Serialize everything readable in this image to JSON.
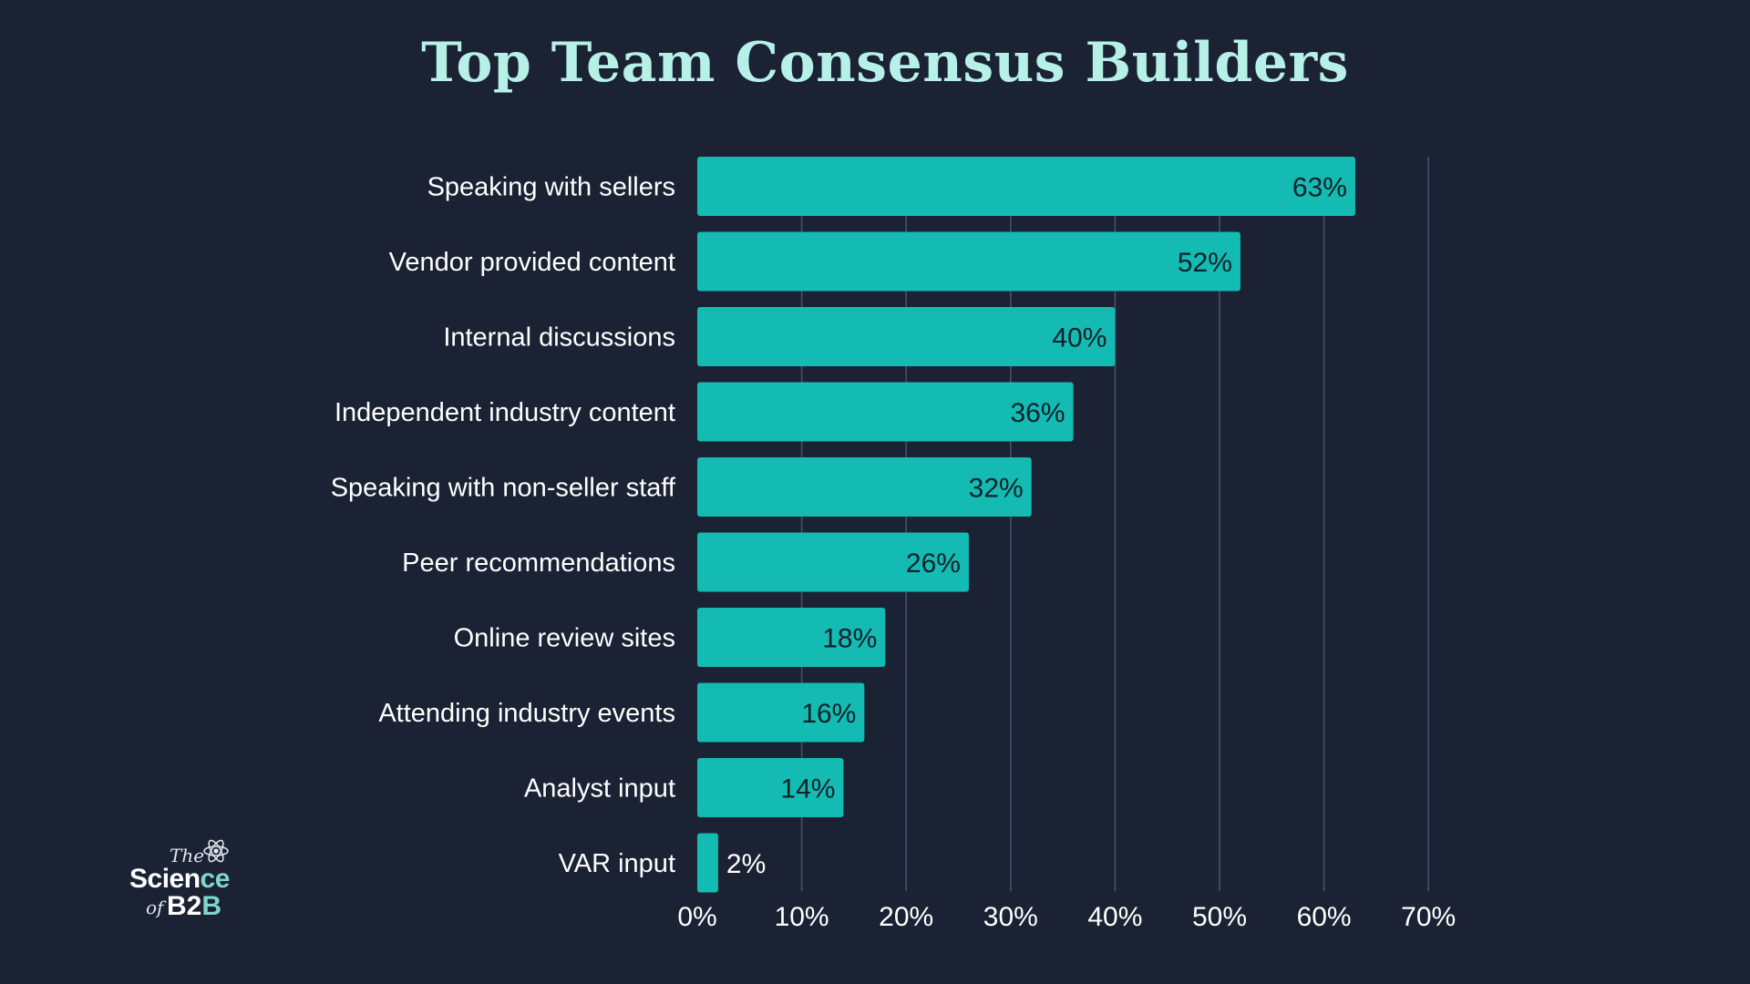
{
  "title": "Top Team Consensus Builders",
  "logo": {
    "the": "The",
    "science_main": "Scien",
    "science_accent": "ce",
    "of": "of",
    "b2b_main": "B2",
    "b2b_accent": "B"
  },
  "colors": {
    "background": "#1a2233",
    "bar": "#14bbb2",
    "title": "#b6f0e6",
    "gridline": "#4a5466",
    "label": "#ffffff",
    "value_label_inside": "#10202a",
    "value_label_outside": "#ffffff"
  },
  "chart_data": {
    "type": "bar",
    "orientation": "horizontal",
    "title": "Top Team Consensus Builders",
    "categories": [
      "Speaking with sellers",
      "Vendor provided content",
      "Internal discussions",
      "Independent industry content",
      "Speaking with non-seller staff",
      "Peer recommendations",
      "Online review sites",
      "Attending industry events",
      "Analyst input",
      "VAR input"
    ],
    "values": [
      63,
      52,
      40,
      36,
      32,
      26,
      18,
      16,
      14,
      2
    ],
    "value_labels": [
      "63%",
      "52%",
      "40%",
      "36%",
      "32%",
      "26%",
      "18%",
      "16%",
      "14%",
      "2%"
    ],
    "xlim": [
      0,
      70
    ],
    "xticks": [
      0,
      10,
      20,
      30,
      40,
      50,
      60,
      70
    ],
    "xtick_labels": [
      "0%",
      "10%",
      "20%",
      "30%",
      "40%",
      "50%",
      "60%",
      "70%"
    ],
    "grid": true,
    "legend": "none"
  }
}
